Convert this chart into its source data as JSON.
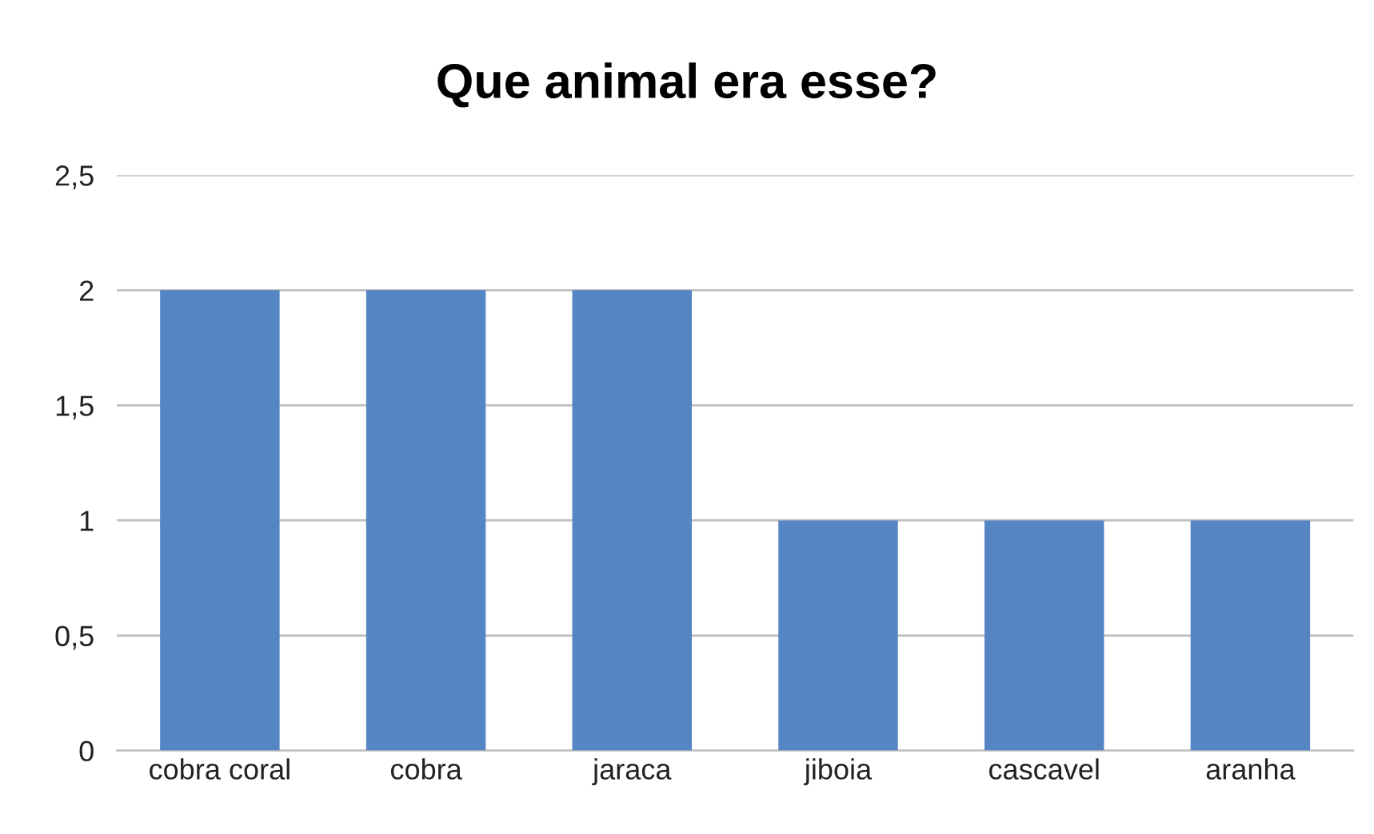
{
  "chart_data": {
    "type": "bar",
    "title": "Que animal era esse?",
    "categories": [
      "cobra coral",
      "cobra",
      "jaraca",
      "jiboia",
      "cascavel",
      "aranha"
    ],
    "values": [
      2,
      2,
      2,
      1,
      1,
      1
    ],
    "color": "#5585c3",
    "ylim": [
      0,
      2.5
    ],
    "yticks": [
      0,
      {
        "value": 0.5,
        "label": "0,5"
      },
      1,
      {
        "value": 1.5,
        "label": "1,5"
      },
      2,
      {
        "value": 2.5,
        "label": "2,5"
      }
    ],
    "grid": "y",
    "legend": false
  }
}
